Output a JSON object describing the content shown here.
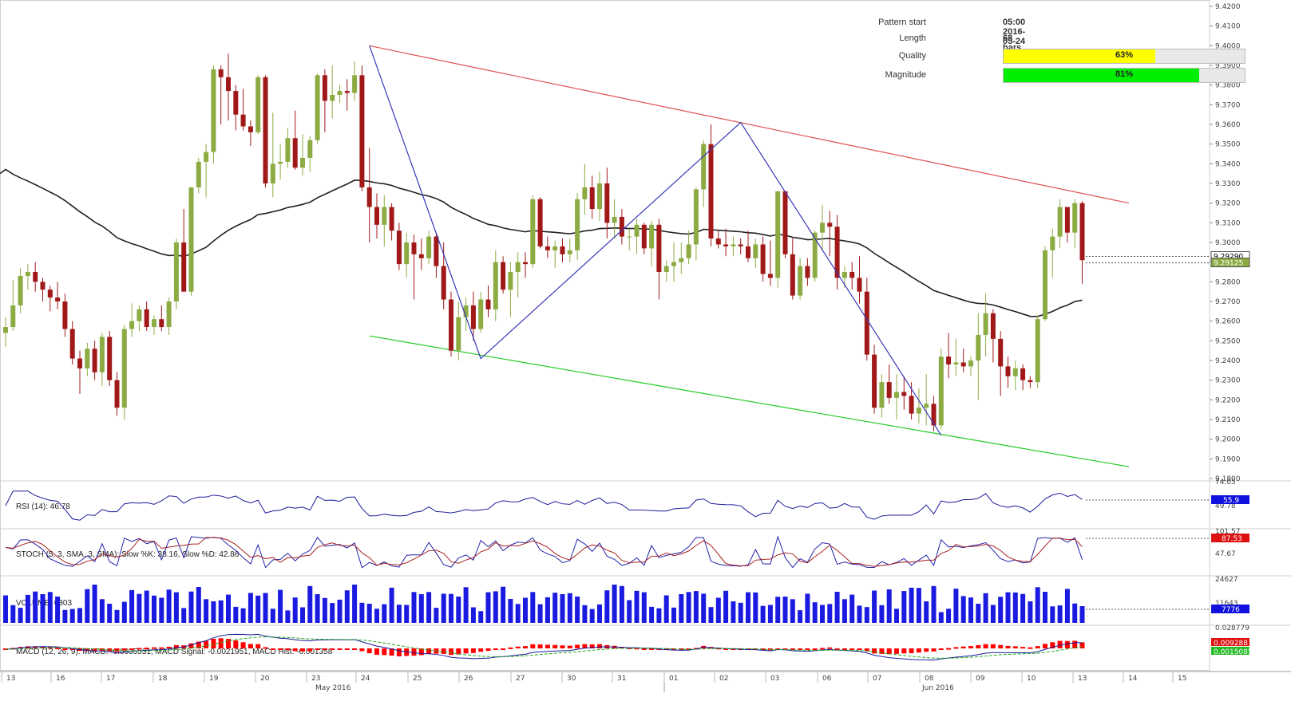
{
  "pattern_info": {
    "start_label": "Pattern start",
    "start_value": "05:00 2016-05-24",
    "length_label": "Length",
    "length_value": "68 bars",
    "quality_label": "Quality",
    "quality_value": "63%",
    "quality_fraction": 0.63,
    "quality_color": "#ffff00",
    "magnitude_label": "Magnitude",
    "magnitude_value": "81%",
    "magnitude_fraction": 0.81,
    "magnitude_color": "#00ee00"
  },
  "panels": {
    "rsi_title": "RSI (14): 46.78",
    "stoch_title": "STOCH (5, 3, SMA, 3, SMA): Slow %K: 38.16, Slow %D: 42.86",
    "volume_title": "VOLUME: 6303",
    "macd_title": "MACD (12, 26, 9): MACD: -0.0035531, MACD Signal: -0.0021951, MACD Hist: -0.001358"
  },
  "colors": {
    "bull": "#8cab43",
    "bear": "#a01818",
    "upper_line": "#e05050",
    "lower_line": "#22cc22",
    "zigzag": "#3838b8",
    "ma": "#222222",
    "volume": "#1a1ae0",
    "macd_hist": "#ff0000"
  },
  "chart_data": {
    "type": "candlestick",
    "y_ticks": [
      "9.4200",
      "9.4100",
      "9.4000",
      "9.3900",
      "9.3800",
      "9.3700",
      "9.3600",
      "9.3500",
      "9.3400",
      "9.3300",
      "9.3200",
      "9.3100",
      "9.3000",
      "9.2900",
      "9.2800",
      "9.2700",
      "9.2600",
      "9.2500",
      "9.2400",
      "9.2300",
      "9.2200",
      "9.2100",
      "9.2000",
      "9.1900",
      "9.1800"
    ],
    "ylim": [
      9.18,
      9.42
    ],
    "price_tags": [
      "9.29290",
      "9.29125"
    ],
    "x_day_labels": [
      "13",
      "16",
      "17",
      "18",
      "19",
      "20",
      "23",
      "24",
      "25",
      "26",
      "27",
      "30",
      "31",
      "01",
      "02",
      "03",
      "06",
      "07",
      "08",
      "09",
      "10",
      "13",
      "14",
      "15"
    ],
    "x_month_labels": [
      "May 2016",
      "Jun 2016"
    ],
    "pattern_points": [
      [
        2016.0524,
        9.4
      ],
      [
        2016.0526,
        9.241
      ],
      [
        2016.0602,
        9.361
      ],
      [
        2016.0608,
        9.202
      ]
    ],
    "candles": [
      {
        "o": 9.254,
        "h": 9.262,
        "l": 9.247,
        "c": 9.257
      },
      {
        "o": 9.257,
        "h": 9.281,
        "l": 9.255,
        "c": 9.268
      },
      {
        "o": 9.268,
        "h": 9.287,
        "l": 9.264,
        "c": 9.283
      },
      {
        "o": 9.283,
        "h": 9.289,
        "l": 9.276,
        "c": 9.285
      },
      {
        "o": 9.285,
        "h": 9.29,
        "l": 9.275,
        "c": 9.28
      },
      {
        "o": 9.28,
        "h": 9.282,
        "l": 9.27,
        "c": 9.276
      },
      {
        "o": 9.276,
        "h": 9.278,
        "l": 9.265,
        "c": 9.272
      },
      {
        "o": 9.272,
        "h": 9.28,
        "l": 9.266,
        "c": 9.27
      },
      {
        "o": 9.27,
        "h": 9.274,
        "l": 9.252,
        "c": 9.256
      },
      {
        "o": 9.256,
        "h": 9.26,
        "l": 9.238,
        "c": 9.241
      },
      {
        "o": 9.241,
        "h": 9.245,
        "l": 9.223,
        "c": 9.236
      },
      {
        "o": 9.236,
        "h": 9.249,
        "l": 9.232,
        "c": 9.246
      },
      {
        "o": 9.246,
        "h": 9.25,
        "l": 9.23,
        "c": 9.234
      },
      {
        "o": 9.234,
        "h": 9.254,
        "l": 9.227,
        "c": 9.252
      },
      {
        "o": 9.252,
        "h": 9.255,
        "l": 9.227,
        "c": 9.23
      },
      {
        "o": 9.23,
        "h": 9.234,
        "l": 9.212,
        "c": 9.216
      },
      {
        "o": 9.216,
        "h": 9.258,
        "l": 9.21,
        "c": 9.256
      },
      {
        "o": 9.256,
        "h": 9.269,
        "l": 9.252,
        "c": 9.26
      },
      {
        "o": 9.26,
        "h": 9.268,
        "l": 9.255,
        "c": 9.266
      },
      {
        "o": 9.266,
        "h": 9.27,
        "l": 9.255,
        "c": 9.257
      },
      {
        "o": 9.257,
        "h": 9.263,
        "l": 9.253,
        "c": 9.261
      },
      {
        "o": 9.261,
        "h": 9.268,
        "l": 9.255,
        "c": 9.257
      },
      {
        "o": 9.257,
        "h": 9.272,
        "l": 9.253,
        "c": 9.27
      },
      {
        "o": 9.27,
        "h": 9.302,
        "l": 9.266,
        "c": 9.3
      },
      {
        "o": 9.3,
        "h": 9.317,
        "l": 9.275,
        "c": 9.275
      },
      {
        "o": 9.275,
        "h": 9.328,
        "l": 9.273,
        "c": 9.328
      },
      {
        "o": 9.328,
        "h": 9.343,
        "l": 9.325,
        "c": 9.341
      },
      {
        "o": 9.341,
        "h": 9.35,
        "l": 9.323,
        "c": 9.346
      },
      {
        "o": 9.346,
        "h": 9.39,
        "l": 9.34,
        "c": 9.388
      },
      {
        "o": 9.388,
        "h": 9.39,
        "l": 9.36,
        "c": 9.384
      },
      {
        "o": 9.384,
        "h": 9.396,
        "l": 9.362,
        "c": 9.377
      },
      {
        "o": 9.377,
        "h": 9.38,
        "l": 9.357,
        "c": 9.365
      },
      {
        "o": 9.365,
        "h": 9.378,
        "l": 9.357,
        "c": 9.359
      },
      {
        "o": 9.359,
        "h": 9.362,
        "l": 9.349,
        "c": 9.356
      },
      {
        "o": 9.356,
        "h": 9.385,
        "l": 9.355,
        "c": 9.384
      },
      {
        "o": 9.384,
        "h": 9.385,
        "l": 9.328,
        "c": 9.33
      },
      {
        "o": 9.33,
        "h": 9.366,
        "l": 9.323,
        "c": 9.34
      },
      {
        "o": 9.34,
        "h": 9.35,
        "l": 9.332,
        "c": 9.341
      },
      {
        "o": 9.341,
        "h": 9.358,
        "l": 9.338,
        "c": 9.353
      },
      {
        "o": 9.353,
        "h": 9.367,
        "l": 9.337,
        "c": 9.338
      },
      {
        "o": 9.338,
        "h": 9.355,
        "l": 9.334,
        "c": 9.343
      },
      {
        "o": 9.343,
        "h": 9.354,
        "l": 9.336,
        "c": 9.352
      },
      {
        "o": 9.352,
        "h": 9.386,
        "l": 9.35,
        "c": 9.385
      },
      {
        "o": 9.385,
        "h": 9.388,
        "l": 9.356,
        "c": 9.372
      },
      {
        "o": 9.372,
        "h": 9.39,
        "l": 9.363,
        "c": 9.375
      },
      {
        "o": 9.375,
        "h": 9.38,
        "l": 9.371,
        "c": 9.377
      },
      {
        "o": 9.377,
        "h": 9.383,
        "l": 9.367,
        "c": 9.376
      },
      {
        "o": 9.376,
        "h": 9.392,
        "l": 9.372,
        "c": 9.385
      },
      {
        "o": 9.385,
        "h": 9.39,
        "l": 9.326,
        "c": 9.328
      },
      {
        "o": 9.328,
        "h": 9.348,
        "l": 9.3,
        "c": 9.318
      },
      {
        "o": 9.318,
        "h": 9.325,
        "l": 9.302,
        "c": 9.309
      },
      {
        "o": 9.309,
        "h": 9.324,
        "l": 9.298,
        "c": 9.318
      },
      {
        "o": 9.318,
        "h": 9.32,
        "l": 9.301,
        "c": 9.306
      },
      {
        "o": 9.306,
        "h": 9.31,
        "l": 9.286,
        "c": 9.289
      },
      {
        "o": 9.289,
        "h": 9.305,
        "l": 9.282,
        "c": 9.3
      },
      {
        "o": 9.3,
        "h": 9.304,
        "l": 9.271,
        "c": 9.294
      },
      {
        "o": 9.294,
        "h": 9.302,
        "l": 9.286,
        "c": 9.292
      },
      {
        "o": 9.292,
        "h": 9.306,
        "l": 9.289,
        "c": 9.303
      },
      {
        "o": 9.303,
        "h": 9.305,
        "l": 9.282,
        "c": 9.288
      },
      {
        "o": 9.288,
        "h": 9.3,
        "l": 9.266,
        "c": 9.271
      },
      {
        "o": 9.271,
        "h": 9.275,
        "l": 9.242,
        "c": 9.245
      },
      {
        "o": 9.245,
        "h": 9.27,
        "l": 9.24,
        "c": 9.262
      },
      {
        "o": 9.262,
        "h": 9.272,
        "l": 9.255,
        "c": 9.268
      },
      {
        "o": 9.268,
        "h": 9.275,
        "l": 9.25,
        "c": 9.256
      },
      {
        "o": 9.256,
        "h": 9.275,
        "l": 9.254,
        "c": 9.271
      },
      {
        "o": 9.271,
        "h": 9.278,
        "l": 9.262,
        "c": 9.266
      },
      {
        "o": 9.266,
        "h": 9.296,
        "l": 9.26,
        "c": 9.29
      },
      {
        "o": 9.29,
        "h": 9.293,
        "l": 9.274,
        "c": 9.276
      },
      {
        "o": 9.276,
        "h": 9.29,
        "l": 9.262,
        "c": 9.285
      },
      {
        "o": 9.285,
        "h": 9.295,
        "l": 9.272,
        "c": 9.29
      },
      {
        "o": 9.29,
        "h": 9.295,
        "l": 9.282,
        "c": 9.289
      },
      {
        "o": 9.289,
        "h": 9.324,
        "l": 9.287,
        "c": 9.322
      },
      {
        "o": 9.322,
        "h": 9.323,
        "l": 9.297,
        "c": 9.298
      },
      {
        "o": 9.298,
        "h": 9.303,
        "l": 9.292,
        "c": 9.296
      },
      {
        "o": 9.296,
        "h": 9.301,
        "l": 9.287,
        "c": 9.298
      },
      {
        "o": 9.298,
        "h": 9.302,
        "l": 9.29,
        "c": 9.294
      },
      {
        "o": 9.294,
        "h": 9.302,
        "l": 9.29,
        "c": 9.296
      },
      {
        "o": 9.296,
        "h": 9.325,
        "l": 9.291,
        "c": 9.322
      },
      {
        "o": 9.322,
        "h": 9.34,
        "l": 9.314,
        "c": 9.328
      },
      {
        "o": 9.328,
        "h": 9.334,
        "l": 9.312,
        "c": 9.317
      },
      {
        "o": 9.317,
        "h": 9.336,
        "l": 9.311,
        "c": 9.33
      },
      {
        "o": 9.33,
        "h": 9.338,
        "l": 9.302,
        "c": 9.31
      },
      {
        "o": 9.31,
        "h": 9.322,
        "l": 9.302,
        "c": 9.313
      },
      {
        "o": 9.313,
        "h": 9.317,
        "l": 9.299,
        "c": 9.303
      },
      {
        "o": 9.303,
        "h": 9.307,
        "l": 9.296,
        "c": 9.303
      },
      {
        "o": 9.303,
        "h": 9.312,
        "l": 9.294,
        "c": 9.309
      },
      {
        "o": 9.309,
        "h": 9.31,
        "l": 9.294,
        "c": 9.297
      },
      {
        "o": 9.297,
        "h": 9.311,
        "l": 9.288,
        "c": 9.309
      },
      {
        "o": 9.309,
        "h": 9.312,
        "l": 9.271,
        "c": 9.285
      },
      {
        "o": 9.285,
        "h": 9.291,
        "l": 9.28,
        "c": 9.288
      },
      {
        "o": 9.288,
        "h": 9.3,
        "l": 9.28,
        "c": 9.29
      },
      {
        "o": 9.29,
        "h": 9.3,
        "l": 9.284,
        "c": 9.292
      },
      {
        "o": 9.292,
        "h": 9.306,
        "l": 9.289,
        "c": 9.299
      },
      {
        "o": 9.299,
        "h": 9.328,
        "l": 9.291,
        "c": 9.327
      },
      {
        "o": 9.327,
        "h": 9.352,
        "l": 9.318,
        "c": 9.35
      },
      {
        "o": 9.35,
        "h": 9.36,
        "l": 9.298,
        "c": 9.302
      },
      {
        "o": 9.302,
        "h": 9.306,
        "l": 9.297,
        "c": 9.299
      },
      {
        "o": 9.299,
        "h": 9.307,
        "l": 9.293,
        "c": 9.298
      },
      {
        "o": 9.298,
        "h": 9.303,
        "l": 9.293,
        "c": 9.299
      },
      {
        "o": 9.299,
        "h": 9.302,
        "l": 9.294,
        "c": 9.298
      },
      {
        "o": 9.298,
        "h": 9.306,
        "l": 9.29,
        "c": 9.292
      },
      {
        "o": 9.292,
        "h": 9.302,
        "l": 9.287,
        "c": 9.299
      },
      {
        "o": 9.299,
        "h": 9.303,
        "l": 9.28,
        "c": 9.284
      },
      {
        "o": 9.284,
        "h": 9.301,
        "l": 9.278,
        "c": 9.282
      },
      {
        "o": 9.282,
        "h": 9.326,
        "l": 9.277,
        "c": 9.326
      },
      {
        "o": 9.326,
        "h": 9.326,
        "l": 9.292,
        "c": 9.294
      },
      {
        "o": 9.294,
        "h": 9.302,
        "l": 9.271,
        "c": 9.273
      },
      {
        "o": 9.273,
        "h": 9.292,
        "l": 9.271,
        "c": 9.288
      },
      {
        "o": 9.288,
        "h": 9.292,
        "l": 9.278,
        "c": 9.282
      },
      {
        "o": 9.282,
        "h": 9.306,
        "l": 9.28,
        "c": 9.305
      },
      {
        "o": 9.305,
        "h": 9.319,
        "l": 9.296,
        "c": 9.31
      },
      {
        "o": 9.31,
        "h": 9.316,
        "l": 9.293,
        "c": 9.308
      },
      {
        "o": 9.308,
        "h": 9.314,
        "l": 9.276,
        "c": 9.282
      },
      {
        "o": 9.282,
        "h": 9.288,
        "l": 9.277,
        "c": 9.285
      },
      {
        "o": 9.285,
        "h": 9.29,
        "l": 9.276,
        "c": 9.282
      },
      {
        "o": 9.282,
        "h": 9.293,
        "l": 9.269,
        "c": 9.275
      },
      {
        "o": 9.275,
        "h": 9.282,
        "l": 9.24,
        "c": 9.243
      },
      {
        "o": 9.243,
        "h": 9.248,
        "l": 9.213,
        "c": 9.216
      },
      {
        "o": 9.216,
        "h": 9.233,
        "l": 9.211,
        "c": 9.229
      },
      {
        "o": 9.229,
        "h": 9.238,
        "l": 9.218,
        "c": 9.221
      },
      {
        "o": 9.221,
        "h": 9.233,
        "l": 9.21,
        "c": 9.224
      },
      {
        "o": 9.224,
        "h": 9.232,
        "l": 9.215,
        "c": 9.222
      },
      {
        "o": 9.222,
        "h": 9.229,
        "l": 9.21,
        "c": 9.213
      },
      {
        "o": 9.213,
        "h": 9.226,
        "l": 9.208,
        "c": 9.216
      },
      {
        "o": 9.216,
        "h": 9.233,
        "l": 9.207,
        "c": 9.218
      },
      {
        "o": 9.218,
        "h": 9.222,
        "l": 9.204,
        "c": 9.207
      },
      {
        "o": 9.207,
        "h": 9.246,
        "l": 9.205,
        "c": 9.242
      },
      {
        "o": 9.242,
        "h": 9.254,
        "l": 9.231,
        "c": 9.238
      },
      {
        "o": 9.238,
        "h": 9.251,
        "l": 9.232,
        "c": 9.239
      },
      {
        "o": 9.239,
        "h": 9.246,
        "l": 9.234,
        "c": 9.237
      },
      {
        "o": 9.237,
        "h": 9.242,
        "l": 9.232,
        "c": 9.24
      },
      {
        "o": 9.24,
        "h": 9.264,
        "l": 9.22,
        "c": 9.253
      },
      {
        "o": 9.253,
        "h": 9.274,
        "l": 9.242,
        "c": 9.264
      },
      {
        "o": 9.264,
        "h": 9.266,
        "l": 9.239,
        "c": 9.251
      },
      {
        "o": 9.251,
        "h": 9.255,
        "l": 9.222,
        "c": 9.237
      },
      {
        "o": 9.237,
        "h": 9.242,
        "l": 9.226,
        "c": 9.232
      },
      {
        "o": 9.232,
        "h": 9.24,
        "l": 9.225,
        "c": 9.236
      },
      {
        "o": 9.236,
        "h": 9.238,
        "l": 9.225,
        "c": 9.23
      },
      {
        "o": 9.23,
        "h": 9.232,
        "l": 9.226,
        "c": 9.229
      },
      {
        "o": 9.229,
        "h": 9.263,
        "l": 9.226,
        "c": 9.261
      },
      {
        "o": 9.261,
        "h": 9.298,
        "l": 9.26,
        "c": 9.296
      },
      {
        "o": 9.296,
        "h": 9.307,
        "l": 9.282,
        "c": 9.303
      },
      {
        "o": 9.303,
        "h": 9.322,
        "l": 9.297,
        "c": 9.318
      },
      {
        "o": 9.318,
        "h": 9.318,
        "l": 9.3,
        "c": 9.305
      },
      {
        "o": 9.305,
        "h": 9.322,
        "l": 9.297,
        "c": 9.32
      },
      {
        "o": 9.32,
        "h": 9.321,
        "l": 9.279,
        "c": 9.291
      }
    ],
    "rsi_axis": [
      "74.05",
      "49.78"
    ],
    "rsi_last": "55.9",
    "stoch_axis": [
      "101.57",
      "47.67"
    ],
    "stoch_last": "87.53",
    "volume_axis": [
      "24627",
      "11643"
    ],
    "volume_last": "7776",
    "macd_axis": [
      "0.028779"
    ],
    "macd_last_hi": "0.009288",
    "macd_last_lo": "0.0015085"
  }
}
